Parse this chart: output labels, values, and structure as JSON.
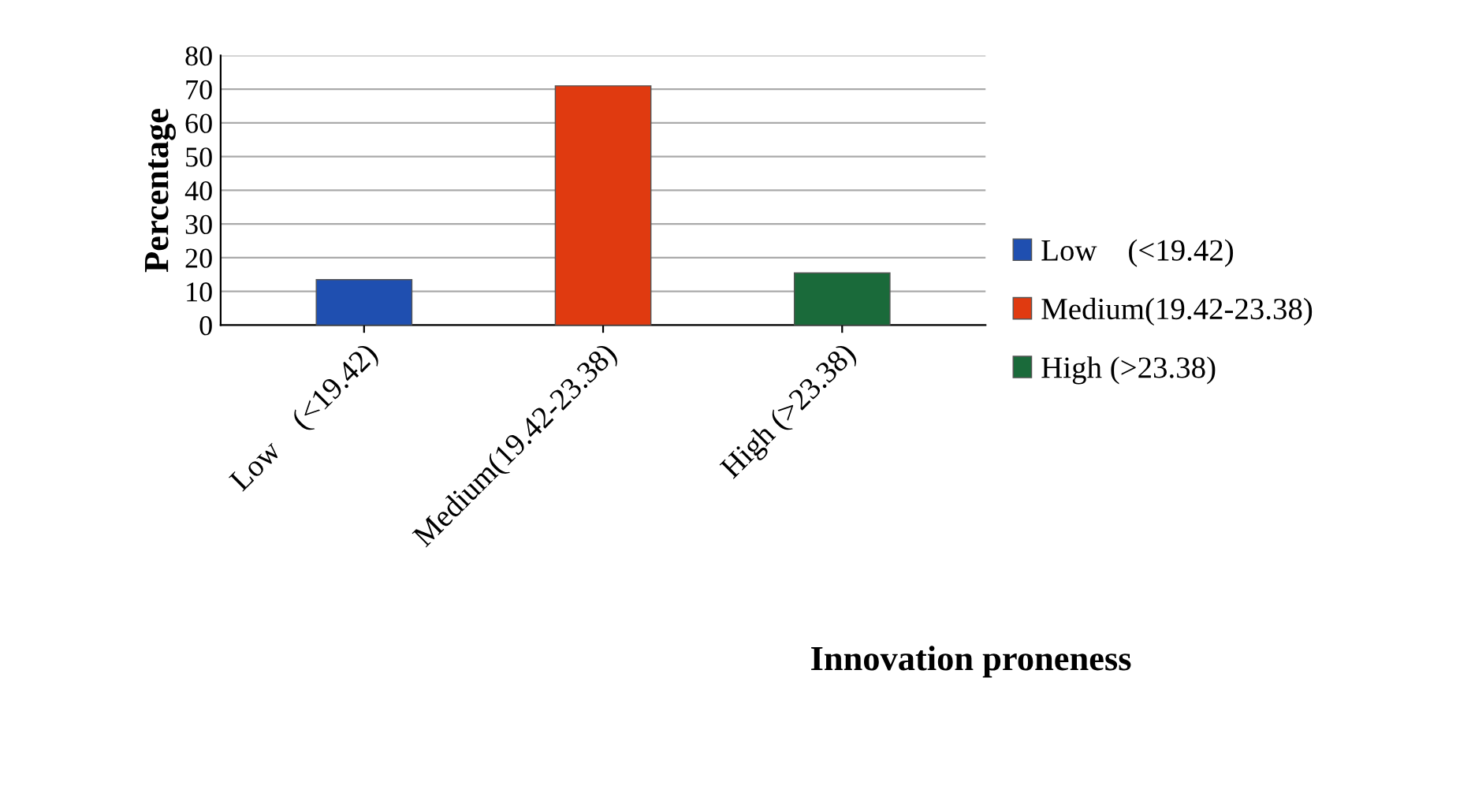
{
  "chart_data": {
    "type": "bar",
    "xlabel": "Innovation proneness",
    "ylabel": "Percentage",
    "categories": [
      "Low    (<19.42)",
      "Medium(19.42-23.38)",
      "High (>23.38)"
    ],
    "series": [
      {
        "name": "Low    (<19.42)",
        "color": "#1f4fb0",
        "values": [
          13.5,
          null,
          null
        ]
      },
      {
        "name": "Medium(19.42-23.38)",
        "color": "#e03a10",
        "values": [
          null,
          71,
          null
        ]
      },
      {
        "name": "High (>23.38)",
        "color": "#1a6a3a",
        "values": [
          null,
          null,
          15.5
        ]
      }
    ],
    "ylim": [
      0,
      80
    ],
    "yticks": [
      0,
      10,
      20,
      30,
      40,
      50,
      60,
      70,
      80
    ],
    "grid": "y",
    "legend": "right"
  }
}
